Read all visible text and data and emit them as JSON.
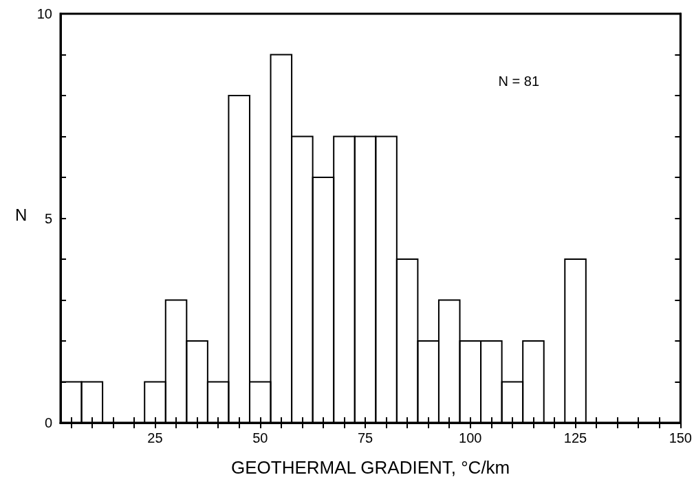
{
  "chart_data": {
    "type": "histogram",
    "xlabel": "GEOTHERMAL GRADIENT, °C/km",
    "ylabel": "N",
    "annotations": [
      "N = 81"
    ],
    "bins": [
      2.5,
      7.5,
      12.5,
      17.5,
      22.5,
      27.5,
      32.5,
      37.5,
      42.5,
      47.5,
      52.5,
      57.5,
      62.5,
      67.5,
      72.5,
      77.5,
      82.5,
      87.5,
      92.5,
      97.5,
      102.5,
      107.5,
      112.5,
      117.5,
      122.5,
      127.5
    ],
    "values": [
      1,
      1,
      0,
      0,
      1,
      3,
      2,
      1,
      8,
      1,
      9,
      7,
      6,
      7,
      7,
      7,
      4,
      2,
      3,
      2,
      2,
      1,
      2,
      0,
      4
    ],
    "color": "#000000",
    "xlim": [
      2.5,
      150
    ],
    "xticks": [
      {
        "value": 5,
        "label": null
      },
      {
        "value": 10,
        "label": null
      },
      {
        "value": 15,
        "label": null
      },
      {
        "value": 20,
        "label": null
      },
      25,
      {
        "value": 30,
        "label": null
      },
      {
        "value": 35,
        "label": null
      },
      {
        "value": 40,
        "label": null
      },
      {
        "value": 45,
        "label": null
      },
      50,
      {
        "value": 55,
        "label": null
      },
      {
        "value": 60,
        "label": null
      },
      {
        "value": 65,
        "label": null
      },
      {
        "value": 70,
        "label": null
      },
      75,
      {
        "value": 80,
        "label": null
      },
      {
        "value": 85,
        "label": null
      },
      {
        "value": 90,
        "label": null
      },
      {
        "value": 95,
        "label": null
      },
      100,
      {
        "value": 105,
        "label": null
      },
      {
        "value": 110,
        "label": null
      },
      {
        "value": 115,
        "label": null
      },
      {
        "value": 120,
        "label": null
      },
      125,
      {
        "value": 130,
        "label": null
      },
      {
        "value": 135,
        "label": null
      },
      {
        "value": 140,
        "label": null
      },
      {
        "value": 145,
        "label": null
      },
      150
    ],
    "ylim": [
      0,
      10
    ],
    "yticks": [
      0,
      {
        "value": 1,
        "label": null
      },
      {
        "value": 2,
        "label": null
      },
      {
        "value": 3,
        "label": null
      },
      {
        "value": 4,
        "label": null
      },
      5,
      {
        "value": 6,
        "label": null
      },
      {
        "value": 7,
        "label": null
      },
      {
        "value": 8,
        "label": null
      },
      {
        "value": 9,
        "label": null
      },
      10
    ]
  }
}
